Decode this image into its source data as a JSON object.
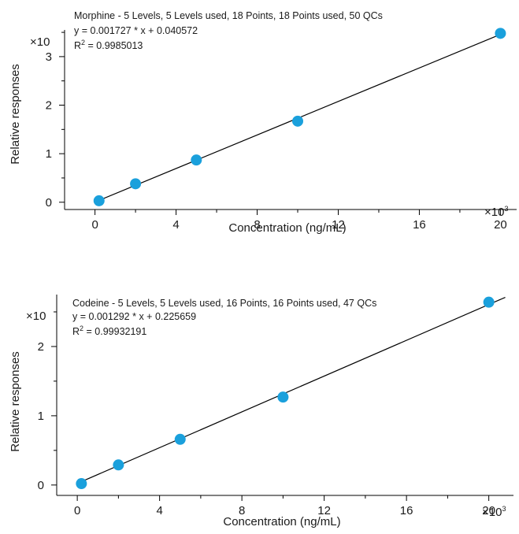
{
  "chart_data": [
    {
      "type": "scatter",
      "annotation": {
        "line1": "Morphine - 5 Levels, 5 Levels used, 18 Points, 18 Points used, 50 QCs",
        "line2": "y = 0.001727 * x + 0.040572",
        "line3_prefix": "R",
        "line3_sup": "2",
        "line3_suffix": " = 0.9985013"
      },
      "xlabel": "Concentration (ng/mL)",
      "ylabel": "Relative responses",
      "x_multiplier_prefix": "×10",
      "x_multiplier_sup": "3",
      "y_multiplier": "×10",
      "xlim": [
        -1.5,
        20.8
      ],
      "ylim": [
        -0.15,
        3.55
      ],
      "x_ticks": [
        0,
        4,
        8,
        12,
        16,
        20
      ],
      "y_ticks": [
        0,
        1,
        2,
        3
      ],
      "fit": {
        "slope": 0.1727,
        "intercept": 0.0041,
        "x_range": [
          0.2,
          20
        ]
      },
      "marker_color": "#1aa0dc",
      "x": [
        0.2,
        2,
        5,
        10,
        20
      ],
      "y": [
        0.03,
        0.38,
        0.87,
        1.67,
        3.48
      ]
    },
    {
      "type": "scatter",
      "annotation": {
        "line1": "Codeine - 5 Levels, 5 Levels used, 16 Points, 16 Points used, 47 QCs",
        "line2": "y = 0.001292 * x + 0.225659",
        "line3_prefix": "R",
        "line3_sup": "2",
        "line3_suffix": " = 0.99932191"
      },
      "xlabel": "Concentration (ng/mL)",
      "ylabel": "Relative responses",
      "x_multiplier_prefix": "×10",
      "x_multiplier_sup": "3",
      "y_multiplier": "×10",
      "xlim": [
        -1,
        21.2
      ],
      "ylim": [
        -0.15,
        2.75
      ],
      "x_ticks": [
        0,
        4,
        8,
        12,
        16,
        20
      ],
      "y_ticks": [
        0,
        1,
        2
      ],
      "fit": {
        "slope": 0.1292,
        "intercept": 0.0226,
        "x_range": [
          0,
          20.8
        ]
      },
      "marker_color": "#1aa0dc",
      "x": [
        0.2,
        2,
        5,
        10,
        20
      ],
      "y": [
        0.02,
        0.29,
        0.66,
        1.27,
        2.64
      ]
    }
  ]
}
